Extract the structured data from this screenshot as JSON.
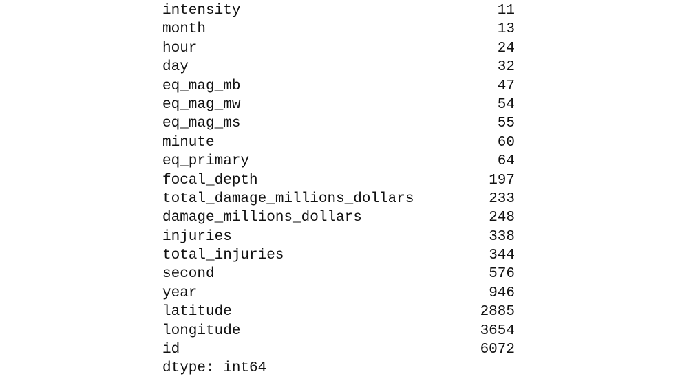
{
  "series_output": {
    "rows": [
      {
        "name": "intensity",
        "value": "11"
      },
      {
        "name": "month",
        "value": "13"
      },
      {
        "name": "hour",
        "value": "24"
      },
      {
        "name": "day",
        "value": "32"
      },
      {
        "name": "eq_mag_mb",
        "value": "47"
      },
      {
        "name": "eq_mag_mw",
        "value": "54"
      },
      {
        "name": "eq_mag_ms",
        "value": "55"
      },
      {
        "name": "minute",
        "value": "60"
      },
      {
        "name": "eq_primary",
        "value": "64"
      },
      {
        "name": "focal_depth",
        "value": "197"
      },
      {
        "name": "total_damage_millions_dollars",
        "value": "233"
      },
      {
        "name": "damage_millions_dollars",
        "value": "248"
      },
      {
        "name": "injuries",
        "value": "338"
      },
      {
        "name": "total_injuries",
        "value": "344"
      },
      {
        "name": "second",
        "value": "576"
      },
      {
        "name": "year",
        "value": "946"
      },
      {
        "name": "latitude",
        "value": "2885"
      },
      {
        "name": "longitude",
        "value": "3654"
      },
      {
        "name": "id",
        "value": "6072"
      }
    ],
    "dtype": "dtype: int64"
  }
}
